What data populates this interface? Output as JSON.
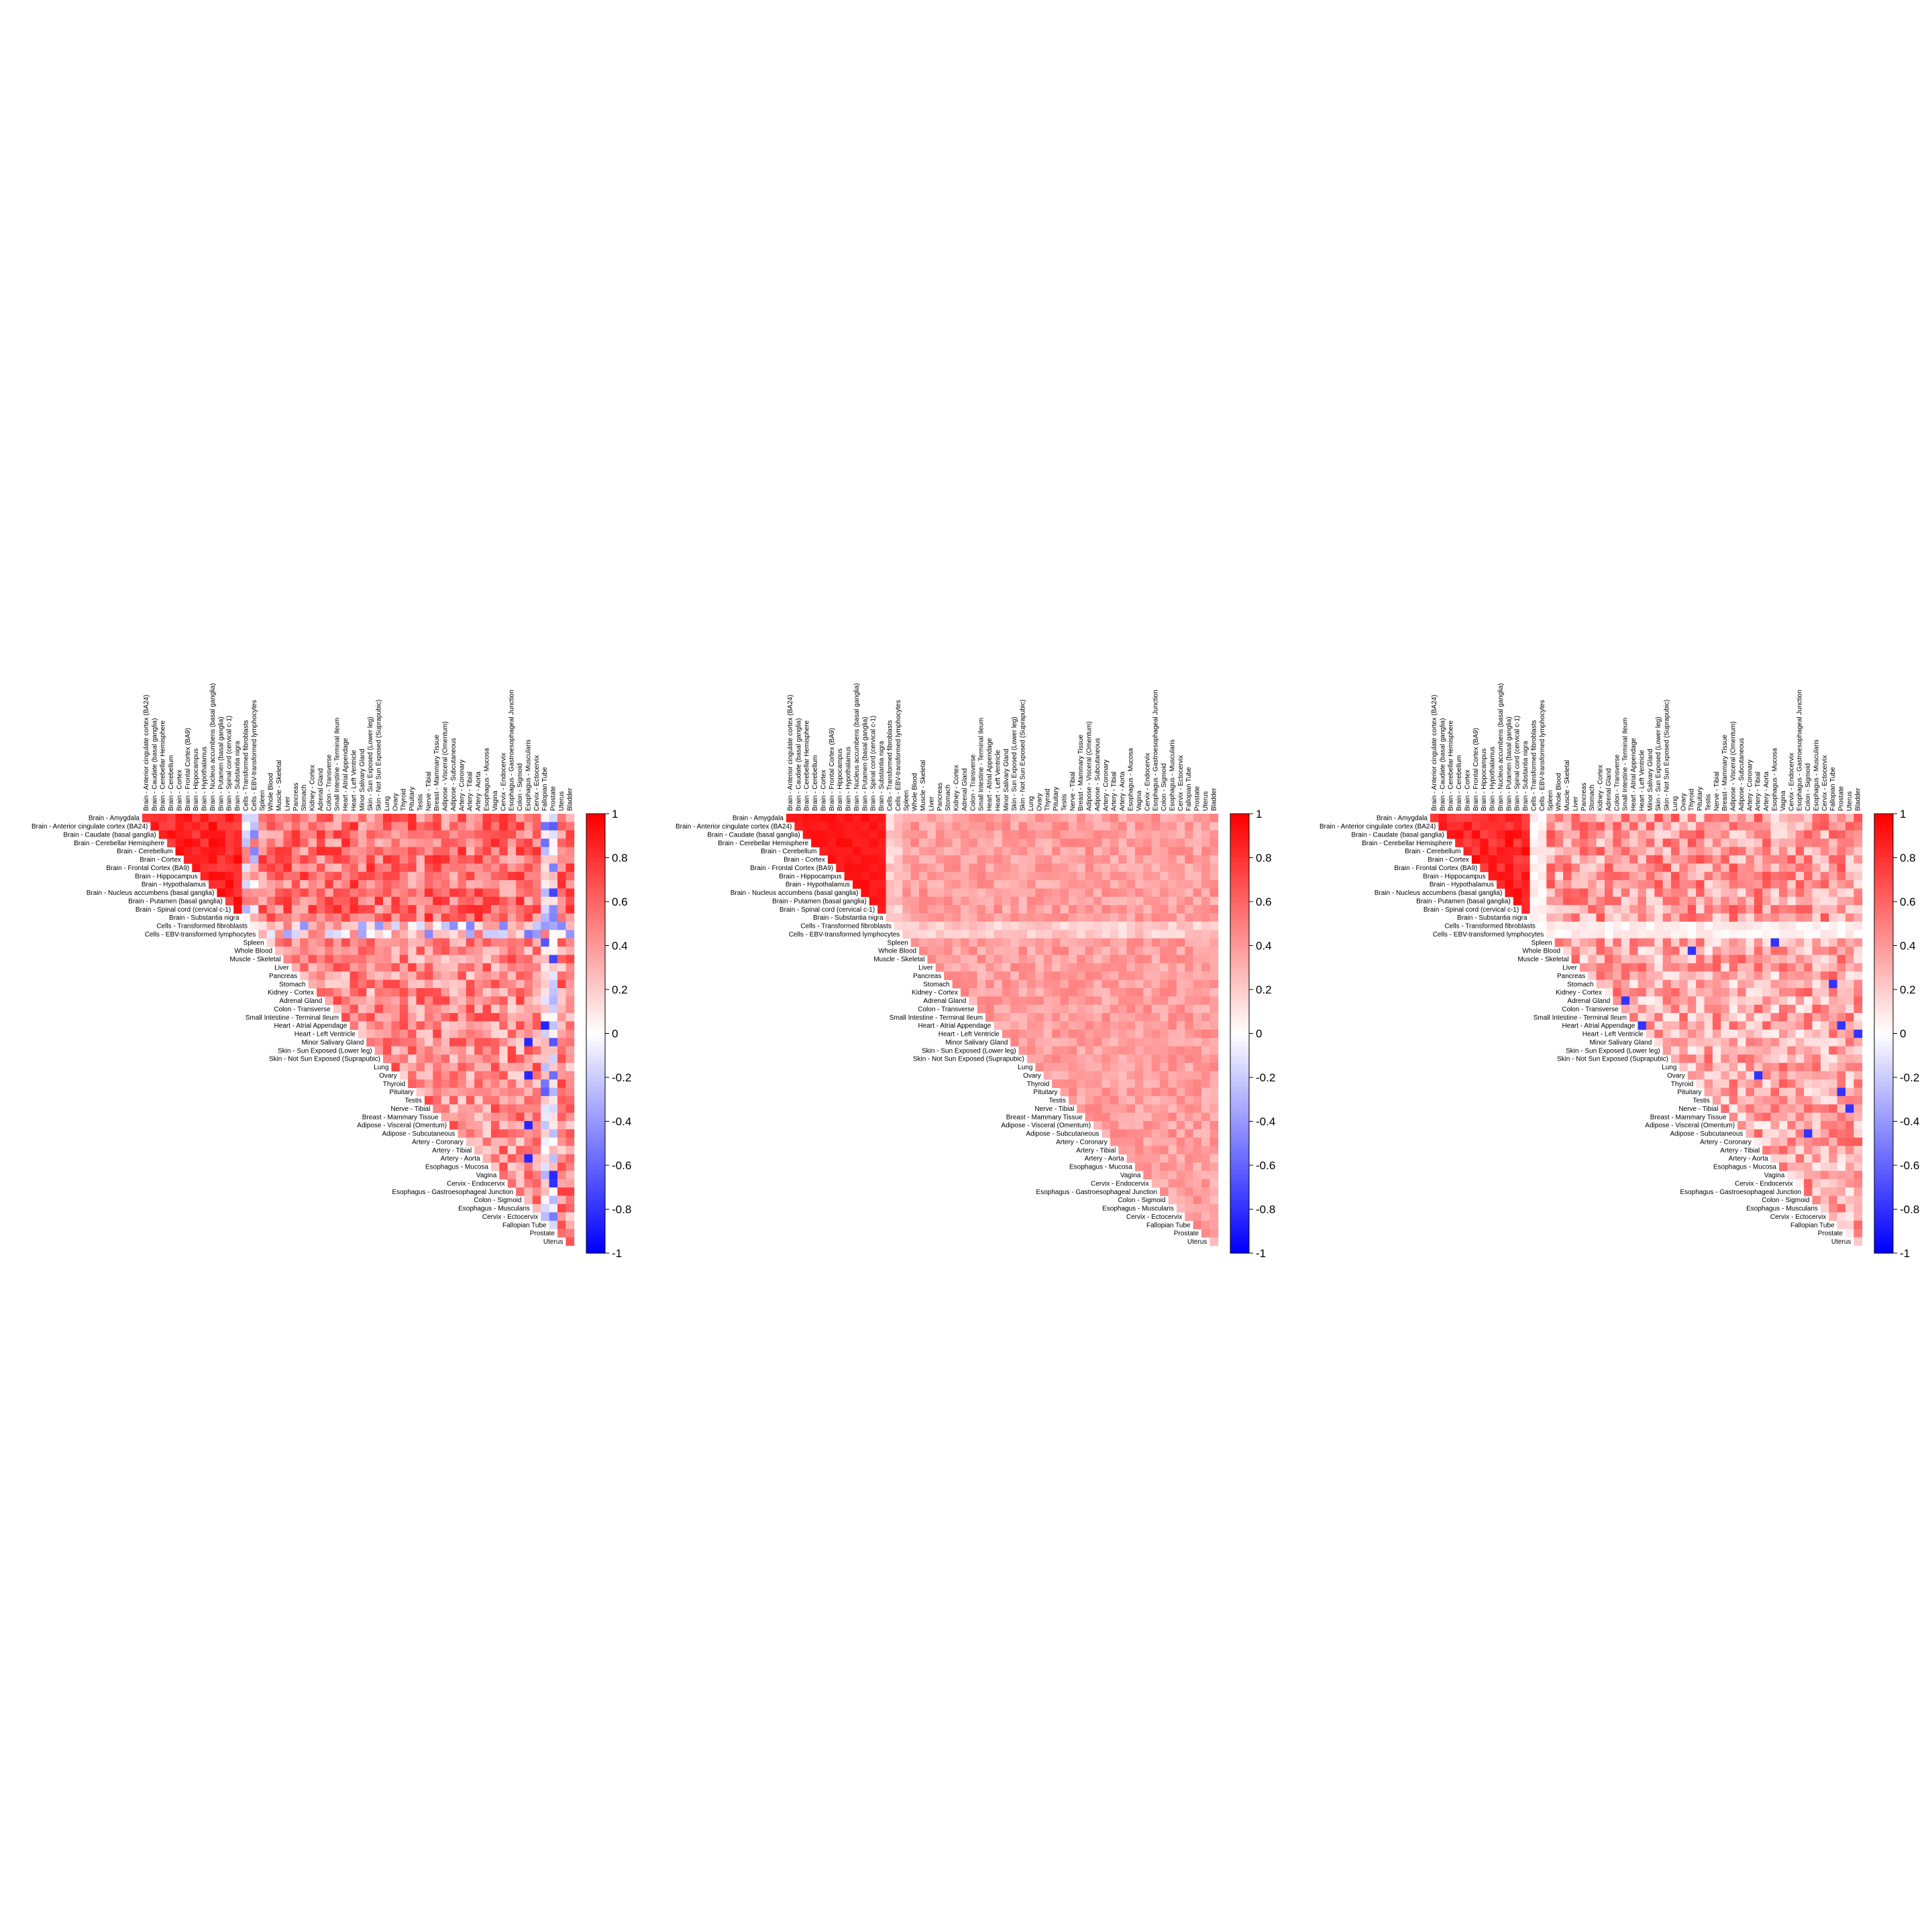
{
  "chart_data": [
    {
      "type": "heatmap",
      "panel": 1,
      "row_labels": [
        "Brain - Amygdala",
        "Brain - Anterior cingulate cortex (BA24)",
        "Brain - Caudate (basal ganglia)",
        "Brain - Cerebellar Hemisphere",
        "Brain - Cerebellum",
        "Brain - Cortex",
        "Brain - Frontal Cortex (BA9)",
        "Brain - Hippocampus",
        "Brain - Hypothalamus",
        "Brain - Nucleus accumbens (basal ganglia)",
        "Brain - Putamen (basal ganglia)",
        "Brain - Spinal cord (cervical c-1)",
        "Brain - Substantia nigra",
        "Cells - Transformed fibroblasts",
        "Cells - EBV-transformed lymphocytes",
        "Spleen",
        "Whole Blood",
        "Muscle - Skeletal",
        "Liver",
        "Pancreas",
        "Stomach",
        "Kidney - Cortex",
        "Adrenal Gland",
        "Colon - Transverse",
        "Small Intestine - Terminal Ileum",
        "Heart - Atrial Appendage",
        "Heart - Left Ventricle",
        "Minor Salivary Gland",
        "Skin - Sun Exposed (Lower leg)",
        "Skin - Not Sun Exposed (Suprapubic)",
        "Lung",
        "Ovary",
        "Thyroid",
        "Pituitary",
        "Testis",
        "Nerve - Tibial",
        "Breast - Mammary Tissue",
        "Adipose - Visceral (Omentum)",
        "Adipose - Subcutaneous",
        "Artery - Coronary",
        "Artery - Tibial",
        "Artery - Aorta",
        "Esophagus - Mucosa",
        "Vagina",
        "Cervix - Endocervix",
        "Esophagus - Gastroesophageal Junction",
        "Colon - Sigmoid",
        "Esophagus - Muscularis",
        "Cervix - Ectocervix",
        "Fallopian Tube",
        "Prostate",
        "Uterus"
      ],
      "column_labels": [
        "Brain - Anterior cingulate cortex (BA24)",
        "Brain - Caudate (basal ganglia)",
        "Brain - Cerebellar Hemisphere",
        "Brain - Cerebellum",
        "Brain - Cortex",
        "Brain - Frontal Cortex (BA9)",
        "Brain - Hippocampus",
        "Brain - Hypothalamus",
        "Brain - Nucleus accumbens (basal ganglia)",
        "Brain - Putamen (basal ganglia)",
        "Brain - Spinal cord (cervical c-1)",
        "Brain - Substantia nigra",
        "Cells - Transformed fibroblasts",
        "Cells - EBV-transformed lymphocytes",
        "Spleen",
        "Whole Blood",
        "Muscle - Skeletal",
        "Liver",
        "Pancreas",
        "Stomach",
        "Kidney - Cortex",
        "Adrenal Gland",
        "Colon - Transverse",
        "Small Intestine - Terminal Ileum",
        "Heart - Atrial Appendage",
        "Heart - Left Ventricle",
        "Minor Salivary Gland",
        "Skin - Sun Exposed (Lower leg)",
        "Skin - Not Sun Exposed (Suprapubic)",
        "Lung",
        "Ovary",
        "Thyroid",
        "Pituitary",
        "Testis",
        "Nerve - Tibial",
        "Breast - Mammary Tissue",
        "Adipose - Visceral (Omentum)",
        "Adipose - Subcutaneous",
        "Artery - Coronary",
        "Artery - Tibial",
        "Artery - Aorta",
        "Esophagus - Mucosa",
        "Vagina",
        "Cervix - Endocervix",
        "Esophagus - Gastroesophageal Junction",
        "Colon - Sigmoid",
        "Esophagus - Muscularis",
        "Cervix - Ectocervix",
        "Fallopian Tube",
        "Prostate",
        "Uterus",
        "Bladder"
      ],
      "layout": "upper-triangle",
      "value_range": [
        -1,
        1
      ],
      "colorbar": {
        "ticks": [
          "1",
          "0.8",
          "0.6",
          "0.4",
          "0.2",
          "0",
          "-0.2",
          "-0.4",
          "-0.6",
          "-0.8",
          "-1"
        ],
        "colors": {
          "low": "#0000ff",
          "mid": "#ffffff",
          "high": "#ff0000"
        }
      },
      "values_note": "",
      "pattern": "brain",
      "seed": 11
    },
    {
      "type": "heatmap",
      "panel": 2,
      "row_labels": [
        "Brain - Amygdala",
        "Brain - Anterior cingulate cortex (BA24)",
        "Brain - Caudate (basal ganglia)",
        "Brain - Cerebellar Hemisphere",
        "Brain - Cerebellum",
        "Brain - Cortex",
        "Brain - Frontal Cortex (BA9)",
        "Brain - Hippocampus",
        "Brain - Hypothalamus",
        "Brain - Nucleus accumbens (basal ganglia)",
        "Brain - Putamen (basal ganglia)",
        "Brain - Spinal cord (cervical c-1)",
        "Brain - Substantia nigra",
        "Cells - Transformed fibroblasts",
        "Cells - EBV-transformed lymphocytes",
        "Spleen",
        "Whole Blood",
        "Muscle - Skeletal",
        "Liver",
        "Pancreas",
        "Stomach",
        "Kidney - Cortex",
        "Adrenal Gland",
        "Colon - Transverse",
        "Small Intestine - Terminal Ileum",
        "Heart - Atrial Appendage",
        "Heart - Left Ventricle",
        "Minor Salivary Gland",
        "Skin - Sun Exposed (Lower leg)",
        "Skin - Not Sun Exposed (Suprapubic)",
        "Lung",
        "Ovary",
        "Thyroid",
        "Pituitary",
        "Testis",
        "Nerve - Tibial",
        "Breast - Mammary Tissue",
        "Adipose - Visceral (Omentum)",
        "Adipose - Subcutaneous",
        "Artery - Coronary",
        "Artery - Tibial",
        "Artery - Aorta",
        "Esophagus - Mucosa",
        "Vagina",
        "Cervix - Endocervix",
        "Esophagus - Gastroesophageal Junction",
        "Colon - Sigmoid",
        "Esophagus - Muscularis",
        "Cervix - Ectocervix",
        "Fallopian Tube",
        "Prostate",
        "Uterus"
      ],
      "column_labels": [
        "Brain - Anterior cingulate cortex (BA24)",
        "Brain - Caudate (basal ganglia)",
        "Brain - Cerebellar Hemisphere",
        "Brain - Cerebellum",
        "Brain - Cortex",
        "Brain - Frontal Cortex (BA9)",
        "Brain - Hippocampus",
        "Brain - Hypothalamus",
        "Brain - Nucleus accumbens (basal ganglia)",
        "Brain - Putamen (basal ganglia)",
        "Brain - Spinal cord (cervical c-1)",
        "Brain - Substantia nigra",
        "Cells - Transformed fibroblasts",
        "Cells - EBV-transformed lymphocytes",
        "Spleen",
        "Whole Blood",
        "Muscle - Skeletal",
        "Liver",
        "Pancreas",
        "Stomach",
        "Kidney - Cortex",
        "Adrenal Gland",
        "Colon - Transverse",
        "Small Intestine - Terminal Ileum",
        "Heart - Atrial Appendage",
        "Heart - Left Ventricle",
        "Minor Salivary Gland",
        "Skin - Sun Exposed (Lower leg)",
        "Skin - Not Sun Exposed (Suprapubic)",
        "Lung",
        "Ovary",
        "Thyroid",
        "Pituitary",
        "Testis",
        "Nerve - Tibial",
        "Breast - Mammary Tissue",
        "Adipose - Visceral (Omentum)",
        "Adipose - Subcutaneous",
        "Artery - Coronary",
        "Artery - Tibial",
        "Artery - Aorta",
        "Esophagus - Mucosa",
        "Vagina",
        "Cervix - Endocervix",
        "Esophagus - Gastroesophageal Junction",
        "Colon - Sigmoid",
        "Esophagus - Muscularis",
        "Cervix - Ectocervix",
        "Fallopian Tube",
        "Prostate",
        "Uterus",
        "Bladder"
      ],
      "layout": "upper-triangle",
      "value_range": [
        -1,
        1
      ],
      "colorbar": {
        "ticks": [
          "1",
          "0.8",
          "0.6",
          "0.4",
          "0.2",
          "0",
          "-0.2",
          "-0.4",
          "-0.6",
          "-0.8",
          "-1"
        ],
        "colors": {
          "low": "#0000ff",
          "mid": "#ffffff",
          "high": "#ff0000"
        }
      },
      "pattern": "smooth",
      "seed": 23
    },
    {
      "type": "heatmap",
      "panel": 3,
      "row_labels": [
        "Brain - Amygdala",
        "Brain - Anterior cingulate cortex (BA24)",
        "Brain - Caudate (basal ganglia)",
        "Brain - Cerebellar Hemisphere",
        "Brain - Cerebellum",
        "Brain - Cortex",
        "Brain - Frontal Cortex (BA9)",
        "Brain - Hippocampus",
        "Brain - Hypothalamus",
        "Brain - Nucleus accumbens (basal ganglia)",
        "Brain - Putamen (basal ganglia)",
        "Brain - Spinal cord (cervical c-1)",
        "Brain - Substantia nigra",
        "Cells - Transformed fibroblasts",
        "Cells - EBV-transformed lymphocytes",
        "Spleen",
        "Whole Blood",
        "Muscle - Skeletal",
        "Liver",
        "Pancreas",
        "Stomach",
        "Kidney - Cortex",
        "Adrenal Gland",
        "Colon - Transverse",
        "Small Intestine - Terminal Ileum",
        "Heart - Atrial Appendage",
        "Heart - Left Ventricle",
        "Minor Salivary Gland",
        "Skin - Sun Exposed (Lower leg)",
        "Skin - Not Sun Exposed (Suprapubic)",
        "Lung",
        "Ovary",
        "Thyroid",
        "Pituitary",
        "Testis",
        "Nerve - Tibial",
        "Breast - Mammary Tissue",
        "Adipose - Visceral (Omentum)",
        "Adipose - Subcutaneous",
        "Artery - Coronary",
        "Artery - Tibial",
        "Artery - Aorta",
        "Esophagus - Mucosa",
        "Vagina",
        "Cervix - Endocervix",
        "Esophagus - Gastroesophageal Junction",
        "Colon - Sigmoid",
        "Esophagus - Muscularis",
        "Cervix - Ectocervix",
        "Fallopian Tube",
        "Prostate",
        "Uterus"
      ],
      "column_labels": [
        "Brain - Anterior cingulate cortex (BA24)",
        "Brain - Caudate (basal ganglia)",
        "Brain - Cerebellar Hemisphere",
        "Brain - Cerebellum",
        "Brain - Cortex",
        "Brain - Frontal Cortex (BA9)",
        "Brain - Hippocampus",
        "Brain - Hypothalamus",
        "Brain - Nucleus accumbens (basal ganglia)",
        "Brain - Putamen (basal ganglia)",
        "Brain - Spinal cord (cervical c-1)",
        "Brain - Substantia nigra",
        "Cells - Transformed fibroblasts",
        "Cells - EBV-transformed lymphocytes",
        "Spleen",
        "Whole Blood",
        "Muscle - Skeletal",
        "Liver",
        "Pancreas",
        "Stomach",
        "Kidney - Cortex",
        "Adrenal Gland",
        "Colon - Transverse",
        "Small Intestine - Terminal Ileum",
        "Heart - Atrial Appendage",
        "Heart - Left Ventricle",
        "Minor Salivary Gland",
        "Skin - Sun Exposed (Lower leg)",
        "Skin - Not Sun Exposed (Suprapubic)",
        "Lung",
        "Ovary",
        "Thyroid",
        "Pituitary",
        "Testis",
        "Nerve - Tibial",
        "Breast - Mammary Tissue",
        "Adipose - Visceral (Omentum)",
        "Adipose - Subcutaneous",
        "Artery - Coronary",
        "Artery - Tibial",
        "Artery - Aorta",
        "Esophagus - Mucosa",
        "Vagina",
        "Cervix - Endocervix",
        "Esophagus - Gastroesophageal Junction",
        "Colon - Sigmoid",
        "Esophagus - Muscularis",
        "Cervix - Ectocervix",
        "Fallopian Tube",
        "Prostate",
        "Uterus",
        "Bladder"
      ],
      "layout": "upper-triangle",
      "value_range": [
        -1,
        1
      ],
      "colorbar": {
        "ticks": [
          "1",
          "0.8",
          "0.6",
          "0.4",
          "0.2",
          "0",
          "-0.2",
          "-0.4",
          "-0.6",
          "-0.8",
          "-1"
        ],
        "colors": {
          "low": "#0000ff",
          "mid": "#ffffff",
          "high": "#ff0000"
        }
      },
      "pattern": "mixed",
      "seed": 37
    }
  ]
}
